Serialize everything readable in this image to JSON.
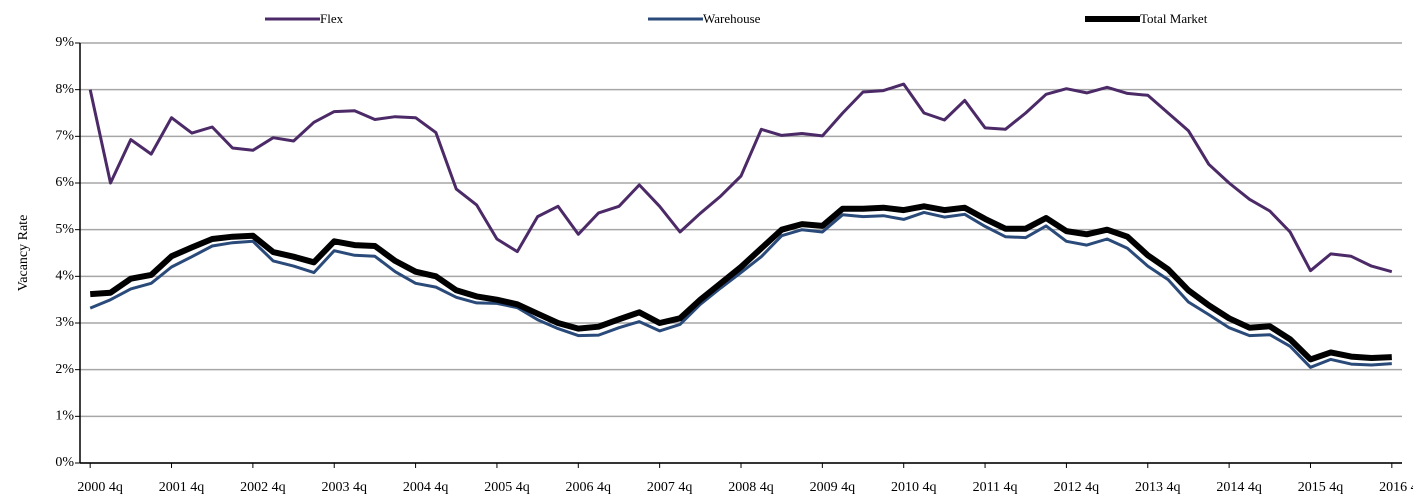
{
  "chart_data": {
    "type": "line",
    "y_label": "Vacancy Rate",
    "categories": [
      "2000 4q",
      null,
      null,
      null,
      "2001 4q",
      null,
      null,
      null,
      "2002 4q",
      null,
      null,
      null,
      "2003 4q",
      null,
      null,
      null,
      "2004 4q",
      null,
      null,
      null,
      "2005 4q",
      null,
      null,
      null,
      "2006 4q",
      null,
      null,
      null,
      "2007 4q",
      null,
      null,
      null,
      "2008 4q",
      null,
      null,
      null,
      "2009 4q",
      null,
      null,
      null,
      "2010 4q",
      null,
      null,
      null,
      "2011 4q",
      null,
      null,
      null,
      "2012 4q",
      null,
      null,
      null,
      "2013 4q",
      null,
      null,
      null,
      "2014 4q",
      null,
      null,
      null,
      "2015 4q",
      null,
      null,
      null,
      "2016 4q"
    ],
    "series": [
      {
        "name": "Flex",
        "color": "#4b2a67",
        "width": 3,
        "values": [
          8.0,
          6.0,
          6.93,
          6.62,
          7.4,
          7.07,
          7.2,
          6.75,
          6.7,
          6.97,
          6.9,
          7.3,
          7.53,
          7.55,
          7.36,
          7.42,
          7.4,
          7.08,
          5.87,
          5.53,
          4.8,
          4.53,
          5.28,
          5.5,
          4.9,
          5.36,
          5.5,
          5.96,
          5.5,
          4.95,
          5.35,
          5.72,
          6.15,
          7.15,
          7.02,
          7.06,
          7.01,
          7.5,
          7.95,
          7.98,
          8.12,
          7.5,
          7.35,
          7.77,
          7.18,
          7.15,
          7.5,
          7.9,
          8.02,
          7.93,
          8.05,
          7.92,
          7.88,
          7.5,
          7.12,
          6.4,
          6.0,
          5.65,
          5.4,
          4.95,
          4.12,
          4.48,
          4.43,
          4.22,
          4.1
        ]
      },
      {
        "name": "Warehouse",
        "color": "#2a4a7a",
        "width": 3,
        "values": [
          3.32,
          3.5,
          3.73,
          3.85,
          4.2,
          4.42,
          4.65,
          4.72,
          4.75,
          4.33,
          4.22,
          4.08,
          4.55,
          4.45,
          4.43,
          4.1,
          3.85,
          3.77,
          3.55,
          3.43,
          3.42,
          3.33,
          3.07,
          2.88,
          2.73,
          2.74,
          2.9,
          3.03,
          2.83,
          2.97,
          3.4,
          3.75,
          4.08,
          4.42,
          4.87,
          5.0,
          4.95,
          5.32,
          5.28,
          5.3,
          5.22,
          5.37,
          5.27,
          5.33,
          5.07,
          4.85,
          4.83,
          5.08,
          4.75,
          4.67,
          4.8,
          4.6,
          4.22,
          3.93,
          3.45,
          3.18,
          2.9,
          2.73,
          2.75,
          2.5,
          2.05,
          2.22,
          2.12,
          2.1,
          2.13
        ]
      },
      {
        "name": "Total Market",
        "color": "#000000",
        "width": 6,
        "values": [
          3.62,
          3.65,
          3.95,
          4.03,
          4.43,
          4.62,
          4.8,
          4.85,
          4.87,
          4.52,
          4.42,
          4.3,
          4.75,
          4.67,
          4.65,
          4.33,
          4.1,
          4.0,
          3.7,
          3.57,
          3.5,
          3.4,
          3.2,
          3.0,
          2.88,
          2.92,
          3.08,
          3.23,
          3.0,
          3.1,
          3.5,
          3.85,
          4.2,
          4.6,
          5.0,
          5.12,
          5.08,
          5.45,
          5.45,
          5.47,
          5.42,
          5.5,
          5.42,
          5.47,
          5.23,
          5.02,
          5.02,
          5.25,
          4.97,
          4.9,
          5.0,
          4.85,
          4.45,
          4.15,
          3.7,
          3.38,
          3.1,
          2.9,
          2.93,
          2.65,
          2.22,
          2.37,
          2.28,
          2.25,
          2.27
        ]
      }
    ],
    "ylim": [
      0,
      9
    ],
    "yticks": [
      {
        "value": 0,
        "label": "0%"
      },
      {
        "value": 1,
        "label": "1%"
      },
      {
        "value": 2,
        "label": "2%"
      },
      {
        "value": 3,
        "label": "3%"
      },
      {
        "value": 4,
        "label": "4%"
      },
      {
        "value": 5,
        "label": "5%"
      },
      {
        "value": 6,
        "label": "6%"
      },
      {
        "value": 7,
        "label": "7%"
      },
      {
        "value": 8,
        "label": "8%"
      },
      {
        "value": 9,
        "label": "9%"
      }
    ],
    "grid": true,
    "legend": "top"
  }
}
